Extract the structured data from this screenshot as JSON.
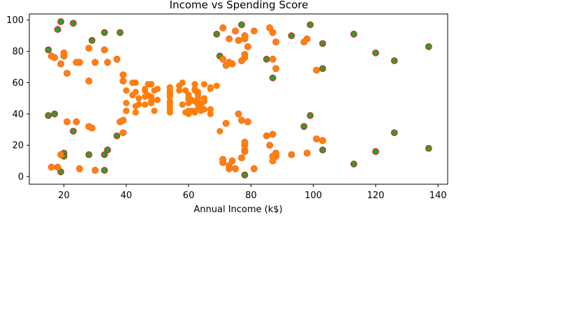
{
  "chart_data": {
    "type": "scatter",
    "title": "Income vs Spending Score",
    "xlabel": "Annual Income (k$)",
    "ylabel": "",
    "xlim": [
      8.9,
      143.1
    ],
    "ylim": [
      -4.9,
      103.9
    ],
    "xticks": [
      20,
      40,
      60,
      80,
      100,
      120,
      140
    ],
    "yticks": [
      0,
      20,
      40,
      60,
      80,
      100
    ],
    "grid": false,
    "legend": "none",
    "colors": {
      "base": "#2ca02c",
      "base_edge": "#d62728",
      "overlay": "#ff7f0e"
    },
    "series": [
      {
        "marker": "green-with-red-edge",
        "points": [
          [
            15,
            39
          ],
          [
            15,
            81
          ],
          [
            16,
            6
          ],
          [
            16,
            77
          ],
          [
            17,
            40
          ],
          [
            17,
            76
          ],
          [
            18,
            6
          ],
          [
            18,
            94
          ],
          [
            19,
            3
          ],
          [
            19,
            72
          ],
          [
            19,
            14
          ],
          [
            19,
            99
          ],
          [
            20,
            15
          ],
          [
            20,
            77
          ],
          [
            20,
            13
          ],
          [
            20,
            79
          ],
          [
            21,
            35
          ],
          [
            21,
            66
          ],
          [
            23,
            29
          ],
          [
            23,
            98
          ],
          [
            24,
            35
          ],
          [
            24,
            73
          ],
          [
            25,
            5
          ],
          [
            25,
            73
          ],
          [
            28,
            14
          ],
          [
            28,
            82
          ],
          [
            28,
            32
          ],
          [
            28,
            61
          ],
          [
            29,
            31
          ],
          [
            29,
            87
          ],
          [
            30,
            4
          ],
          [
            30,
            73
          ],
          [
            33,
            4
          ],
          [
            33,
            92
          ],
          [
            33,
            14
          ],
          [
            33,
            81
          ],
          [
            34,
            17
          ],
          [
            34,
            73
          ],
          [
            37,
            26
          ],
          [
            37,
            75
          ],
          [
            38,
            35
          ],
          [
            38,
            92
          ],
          [
            39,
            36
          ],
          [
            39,
            61
          ],
          [
            39,
            28
          ],
          [
            39,
            65
          ],
          [
            69,
            91
          ],
          [
            70,
            77
          ],
          [
            71,
            95
          ],
          [
            71,
            75
          ],
          [
            71,
            11
          ],
          [
            71,
            9
          ],
          [
            72,
            34
          ],
          [
            72,
            71
          ],
          [
            73,
            5
          ],
          [
            73,
            88
          ],
          [
            73,
            7
          ],
          [
            73,
            73
          ],
          [
            74,
            10
          ],
          [
            74,
            72
          ],
          [
            75,
            5
          ],
          [
            75,
            93
          ],
          [
            76,
            40
          ],
          [
            76,
            87
          ],
          [
            77,
            12
          ],
          [
            77,
            97
          ],
          [
            77,
            36
          ],
          [
            77,
            74
          ],
          [
            78,
            22
          ],
          [
            78,
            90
          ],
          [
            78,
            17
          ],
          [
            78,
            88
          ],
          [
            78,
            20
          ],
          [
            78,
            76
          ],
          [
            78,
            16
          ],
          [
            78,
            89
          ],
          [
            78,
            1
          ],
          [
            78,
            78
          ],
          [
            79,
            35
          ],
          [
            79,
            83
          ],
          [
            81,
            5
          ],
          [
            81,
            93
          ],
          [
            85,
            26
          ],
          [
            85,
            75
          ],
          [
            86,
            20
          ],
          [
            86,
            95
          ],
          [
            87,
            27
          ],
          [
            87,
            63
          ],
          [
            87,
            13
          ],
          [
            87,
            75
          ],
          [
            87,
            10
          ],
          [
            87,
            92
          ],
          [
            88,
            13
          ],
          [
            88,
            86
          ],
          [
            88,
            15
          ],
          [
            88,
            69
          ],
          [
            93,
            14
          ],
          [
            93,
            90
          ],
          [
            97,
            32
          ],
          [
            97,
            86
          ],
          [
            98,
            15
          ],
          [
            98,
            88
          ],
          [
            99,
            39
          ],
          [
            99,
            97
          ],
          [
            101,
            24
          ],
          [
            101,
            68
          ],
          [
            103,
            17
          ],
          [
            103,
            85
          ],
          [
            103,
            23
          ],
          [
            103,
            69
          ],
          [
            113,
            8
          ],
          [
            113,
            91
          ],
          [
            120,
            16
          ],
          [
            120,
            79
          ],
          [
            126,
            28
          ],
          [
            126,
            74
          ],
          [
            137,
            18
          ],
          [
            137,
            83
          ]
        ]
      },
      {
        "marker": "orange",
        "points": [
          [
            16,
            6
          ],
          [
            16,
            77
          ],
          [
            17,
            76
          ],
          [
            18,
            6
          ],
          [
            19,
            72
          ],
          [
            19,
            14
          ],
          [
            20,
            77
          ],
          [
            20,
            79
          ],
          [
            21,
            35
          ],
          [
            21,
            66
          ],
          [
            24,
            35
          ],
          [
            24,
            73
          ],
          [
            25,
            5
          ],
          [
            25,
            73
          ],
          [
            28,
            82
          ],
          [
            28,
            32
          ],
          [
            28,
            61
          ],
          [
            29,
            31
          ],
          [
            30,
            4
          ],
          [
            30,
            73
          ],
          [
            33,
            81
          ],
          [
            34,
            73
          ],
          [
            37,
            75
          ],
          [
            38,
            35
          ],
          [
            39,
            36
          ],
          [
            39,
            61
          ],
          [
            39,
            28
          ],
          [
            39,
            65
          ],
          [
            40,
            55
          ],
          [
            40,
            47
          ],
          [
            40,
            42
          ],
          [
            40,
            42
          ],
          [
            42,
            52
          ],
          [
            42,
            60
          ],
          [
            43,
            54
          ],
          [
            43,
            60
          ],
          [
            43,
            45
          ],
          [
            43,
            41
          ],
          [
            44,
            50
          ],
          [
            44,
            46
          ],
          [
            46,
            51
          ],
          [
            46,
            46
          ],
          [
            46,
            56
          ],
          [
            46,
            55
          ],
          [
            47,
            52
          ],
          [
            47,
            59
          ],
          [
            48,
            51
          ],
          [
            48,
            59
          ],
          [
            48,
            50
          ],
          [
            48,
            48
          ],
          [
            48,
            59
          ],
          [
            48,
            47
          ],
          [
            49,
            55
          ],
          [
            49,
            42
          ],
          [
            50,
            49
          ],
          [
            50,
            56
          ],
          [
            54,
            47
          ],
          [
            54,
            54
          ],
          [
            54,
            53
          ],
          [
            54,
            48
          ],
          [
            54,
            52
          ],
          [
            54,
            42
          ],
          [
            54,
            51
          ],
          [
            54,
            55
          ],
          [
            54,
            41
          ],
          [
            54,
            44
          ],
          [
            54,
            57
          ],
          [
            54,
            46
          ],
          [
            57,
            58
          ],
          [
            57,
            55
          ],
          [
            58,
            60
          ],
          [
            58,
            46
          ],
          [
            59,
            55
          ],
          [
            59,
            41
          ],
          [
            60,
            49
          ],
          [
            60,
            40
          ],
          [
            60,
            42
          ],
          [
            60,
            52
          ],
          [
            60,
            47
          ],
          [
            60,
            50
          ],
          [
            61,
            42
          ],
          [
            61,
            49
          ],
          [
            62,
            41
          ],
          [
            62,
            48
          ],
          [
            62,
            59
          ],
          [
            62,
            55
          ],
          [
            62,
            56
          ],
          [
            62,
            42
          ],
          [
            63,
            50
          ],
          [
            63,
            46
          ],
          [
            63,
            43
          ],
          [
            63,
            48
          ],
          [
            63,
            52
          ],
          [
            63,
            54
          ],
          [
            64,
            42
          ],
          [
            64,
            46
          ],
          [
            65,
            48
          ],
          [
            65,
            50
          ],
          [
            65,
            43
          ],
          [
            65,
            59
          ],
          [
            67,
            43
          ],
          [
            67,
            57
          ],
          [
            67,
            56
          ],
          [
            67,
            40
          ],
          [
            69,
            58
          ],
          [
            70,
            29
          ],
          [
            71,
            95
          ],
          [
            71,
            75
          ],
          [
            71,
            11
          ],
          [
            71,
            9
          ],
          [
            72,
            34
          ],
          [
            72,
            71
          ],
          [
            73,
            5
          ],
          [
            73,
            88
          ],
          [
            73,
            7
          ],
          [
            73,
            73
          ],
          [
            74,
            10
          ],
          [
            74,
            72
          ],
          [
            75,
            5
          ],
          [
            75,
            93
          ],
          [
            76,
            40
          ],
          [
            76,
            87
          ],
          [
            77,
            12
          ],
          [
            77,
            36
          ],
          [
            77,
            74
          ],
          [
            78,
            22
          ],
          [
            78,
            90
          ],
          [
            78,
            17
          ],
          [
            78,
            88
          ],
          [
            78,
            20
          ],
          [
            78,
            76
          ],
          [
            78,
            16
          ],
          [
            78,
            89
          ],
          [
            78,
            78
          ],
          [
            79,
            35
          ],
          [
            79,
            83
          ],
          [
            81,
            5
          ],
          [
            81,
            93
          ],
          [
            85,
            26
          ],
          [
            86,
            20
          ],
          [
            86,
            95
          ],
          [
            87,
            27
          ],
          [
            87,
            13
          ],
          [
            87,
            75
          ],
          [
            87,
            10
          ],
          [
            87,
            92
          ],
          [
            88,
            13
          ],
          [
            88,
            86
          ],
          [
            88,
            15
          ],
          [
            88,
            69
          ],
          [
            93,
            14
          ],
          [
            97,
            86
          ],
          [
            98,
            15
          ],
          [
            98,
            88
          ],
          [
            101,
            24
          ],
          [
            101,
            68
          ],
          [
            103,
            23
          ]
        ]
      }
    ]
  }
}
